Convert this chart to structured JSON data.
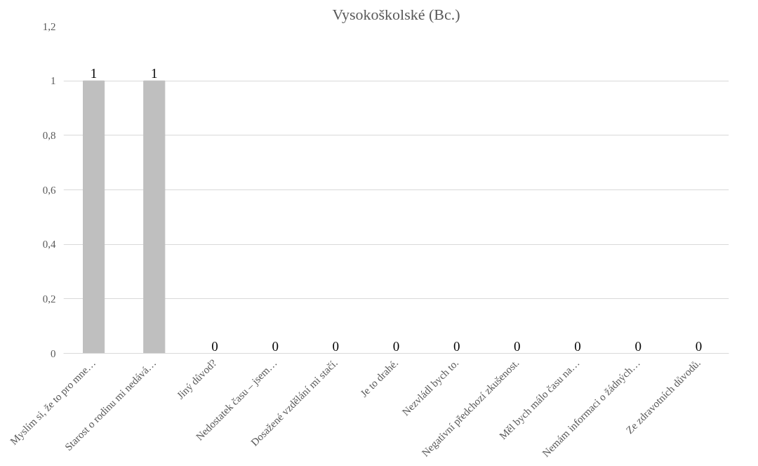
{
  "chart_data": {
    "type": "bar",
    "title": "Vysokoškolské (Bc.)",
    "categories": [
      "Myslím si, že to pro mne…",
      "Starost o rodinu mi nedává…",
      "Jiný důvod?",
      "Nedostatek času – jsem…",
      "Dosažené vzdělání mi stačí.",
      "Je to drahé.",
      "Nezvládl bych to.",
      "Negativní předchozí zkušenost.",
      "Měl bych málo času na…",
      "Nemám informaci o žádných…",
      "Ze zdravotních důvodů."
    ],
    "values": [
      1,
      1,
      0,
      0,
      0,
      0,
      0,
      0,
      0,
      0,
      0
    ],
    "color": "#bfbfbf",
    "ylim": [
      0,
      1.2
    ],
    "yticks": [
      0,
      {
        "value": 0.2,
        "label": "0,2"
      },
      {
        "value": 0.4,
        "label": "0,4"
      },
      {
        "value": 0.6,
        "label": "0,6"
      },
      {
        "value": 0.8,
        "label": "0,8"
      },
      1,
      {
        "value": 1.2,
        "label": "1,2"
      }
    ],
    "grid": "y",
    "data_labels": true
  }
}
